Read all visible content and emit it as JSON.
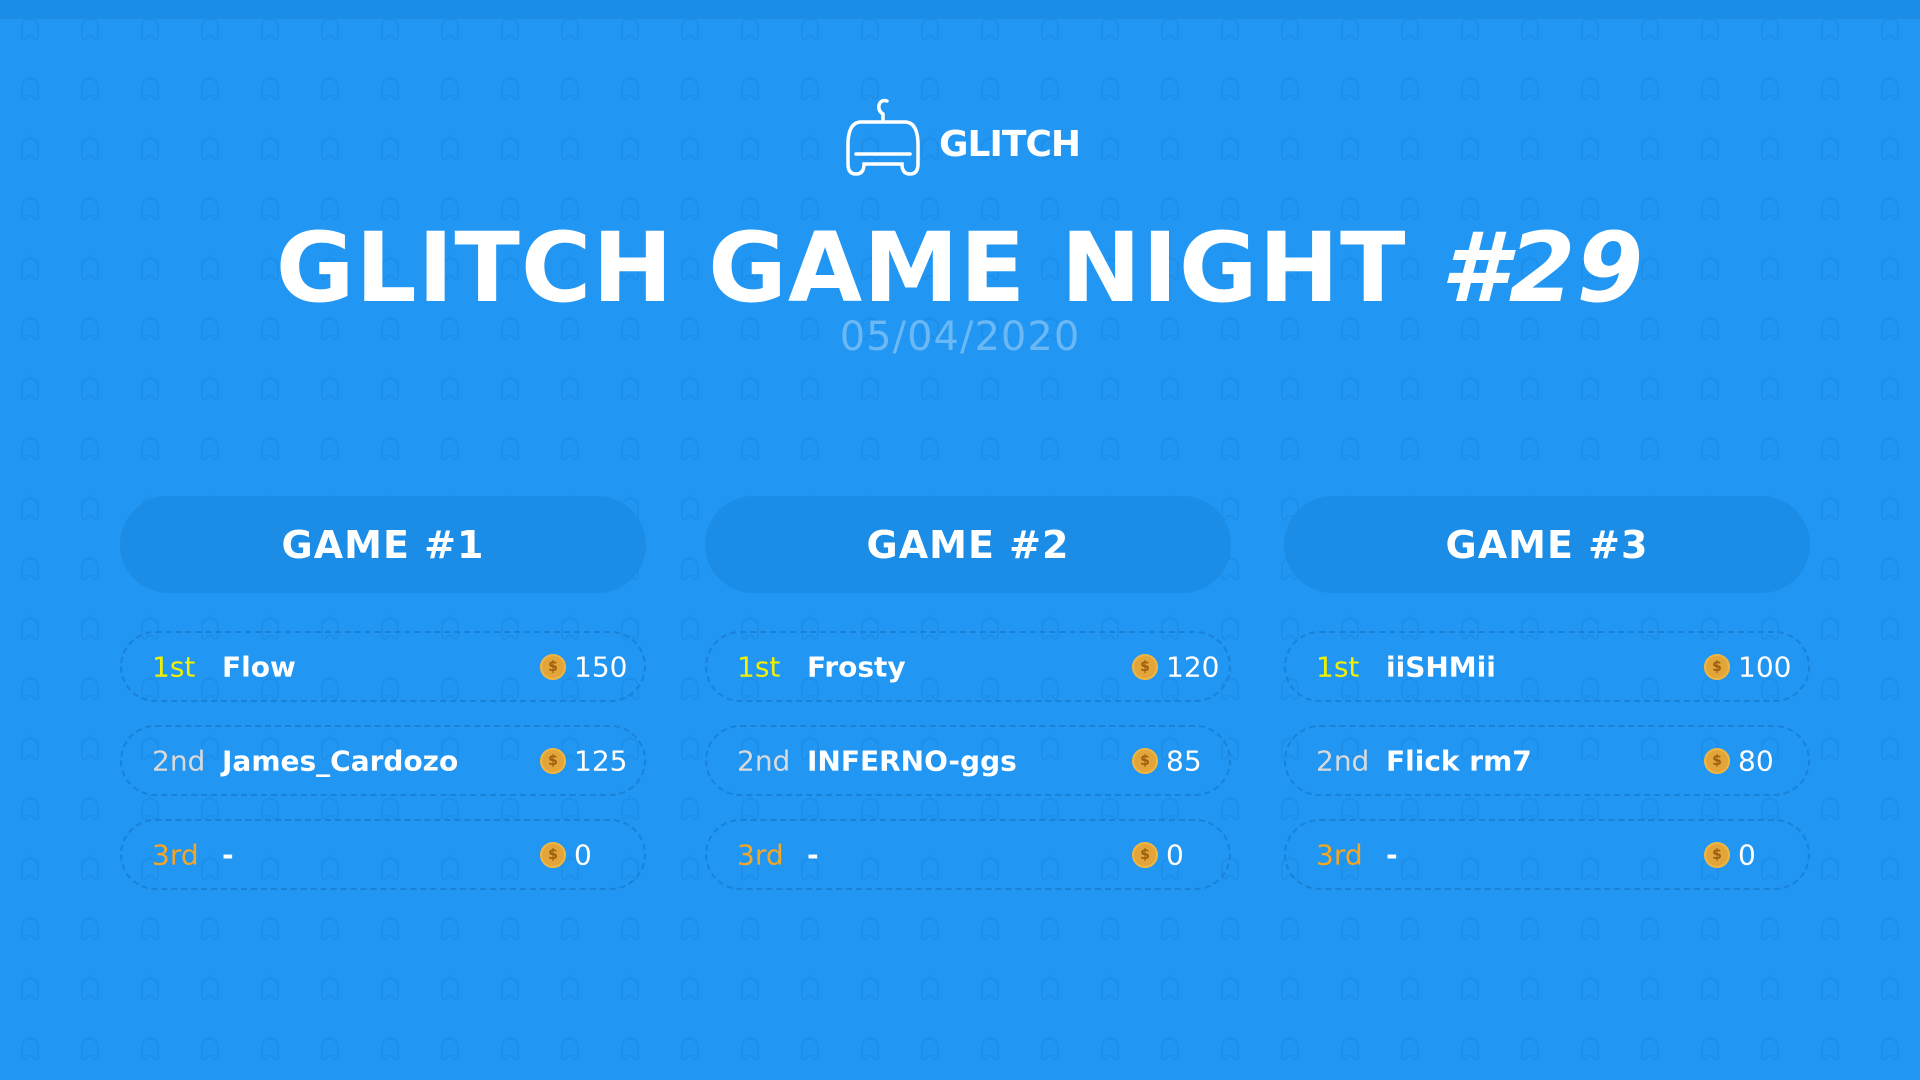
{
  "colors": {
    "background": "#2196f3",
    "header": "#1c8de6",
    "first": "#f2f000",
    "second": "#dadada",
    "third": "#f5a623",
    "coin": "#e3a53a"
  },
  "logo": {
    "text": "GLITCH",
    "icon": "gamepad-icon"
  },
  "title": {
    "main": "GLITCH GAME NIGHT ",
    "number": "#29"
  },
  "date": "05/04/2020",
  "games": [
    {
      "title": "GAME #1",
      "results": [
        {
          "rank": "1st",
          "name": "Flow",
          "points": "150"
        },
        {
          "rank": "2nd",
          "name": "James_Cardozo",
          "points": "125"
        },
        {
          "rank": "3rd",
          "name": "-",
          "points": "0"
        }
      ]
    },
    {
      "title": "GAME #2",
      "results": [
        {
          "rank": "1st",
          "name": "Frosty",
          "points": "120"
        },
        {
          "rank": "2nd",
          "name": "INFERNO-ggs",
          "points": "85"
        },
        {
          "rank": "3rd",
          "name": "-",
          "points": "0"
        }
      ]
    },
    {
      "title": "GAME #3",
      "results": [
        {
          "rank": "1st",
          "name": "iiSHMii",
          "points": "100"
        },
        {
          "rank": "2nd",
          "name": "Flick rm7",
          "points": "80"
        },
        {
          "rank": "3rd",
          "name": "-",
          "points": "0"
        }
      ]
    }
  ],
  "coin_symbol": "$"
}
